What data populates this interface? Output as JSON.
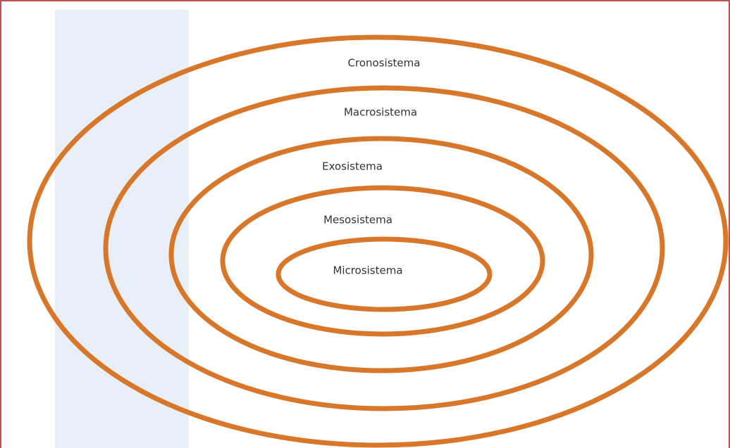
{
  "nodes": [
    {
      "label": "Cronosistema"
    },
    {
      "label": "Macrosistema"
    },
    {
      "label": "Exosistema"
    },
    {
      "label": "Mesosistema"
    },
    {
      "label": "Microsistema"
    }
  ]
}
